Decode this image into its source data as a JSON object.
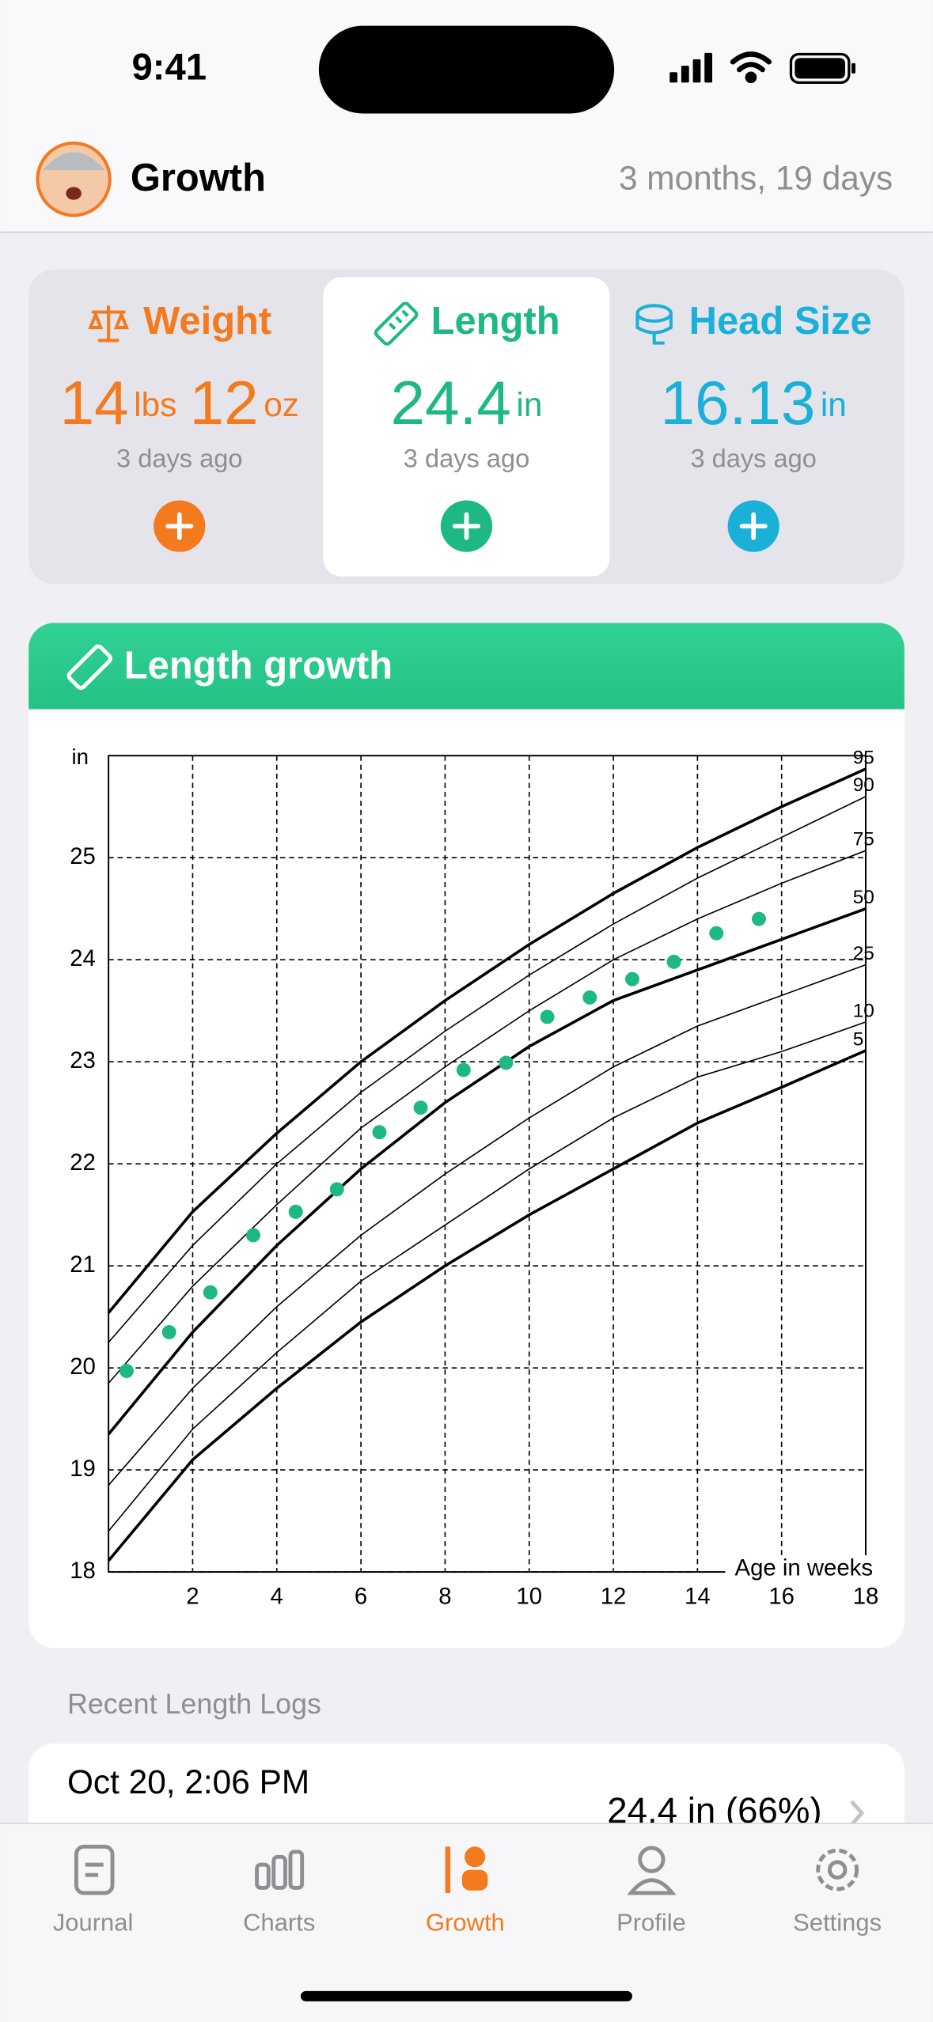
{
  "status_bar": {
    "time": "9:41"
  },
  "header": {
    "title": "Growth",
    "age": "3 months, 19 days"
  },
  "metrics": [
    {
      "label": "Weight",
      "value": "14",
      "unit": "lbs",
      "value2": "12",
      "unit2": "oz",
      "updated": "3 days ago",
      "color": "#f47a20"
    },
    {
      "label": "Length",
      "value": "24.4",
      "unit": "in",
      "updated": "3 days ago",
      "color": "#1db883",
      "selected": true
    },
    {
      "label": "Head Size",
      "value": "16.13",
      "unit": "in",
      "updated": "3 days ago",
      "color": "#1ab0d8"
    }
  ],
  "chart_data": {
    "type": "line",
    "title": "Length growth",
    "y_label": "in",
    "x_label": "Age in weeks",
    "xlim": [
      0,
      18
    ],
    "ylim": [
      18,
      26
    ],
    "xticks": [
      2,
      4,
      6,
      8,
      10,
      12,
      14,
      16,
      18
    ],
    "yticks": [
      18,
      19,
      20,
      21,
      22,
      23,
      24,
      25
    ],
    "grid": true,
    "x": [
      0,
      2,
      4,
      6,
      8,
      10,
      12,
      14,
      16,
      18
    ],
    "percentiles": [
      {
        "label": "95",
        "thick": true,
        "values": [
          20.54,
          21.53,
          22.3,
          23.0,
          23.6,
          24.15,
          24.65,
          25.1,
          25.5,
          25.87
        ]
      },
      {
        "label": "90",
        "thick": false,
        "values": [
          20.25,
          21.2,
          22.0,
          22.7,
          23.3,
          23.85,
          24.35,
          24.8,
          25.2,
          25.6
        ]
      },
      {
        "label": "75",
        "thick": false,
        "values": [
          19.85,
          20.8,
          21.6,
          22.35,
          22.95,
          23.5,
          24.0,
          24.4,
          24.75,
          25.07
        ]
      },
      {
        "label": "50",
        "thick": true,
        "values": [
          19.35,
          20.35,
          21.2,
          21.95,
          22.6,
          23.15,
          23.6,
          23.9,
          24.2,
          24.5
        ]
      },
      {
        "label": "25",
        "thick": false,
        "values": [
          18.85,
          19.8,
          20.6,
          21.3,
          21.9,
          22.45,
          22.95,
          23.35,
          23.65,
          23.95
        ]
      },
      {
        "label": "10",
        "thick": false,
        "values": [
          18.4,
          19.4,
          20.15,
          20.85,
          21.4,
          21.95,
          22.45,
          22.85,
          23.1,
          23.39
        ]
      },
      {
        "label": "5",
        "thick": true,
        "values": [
          18.11,
          19.1,
          19.8,
          20.45,
          21.0,
          21.5,
          21.95,
          22.4,
          22.75,
          23.11
        ]
      }
    ],
    "line_color": "#000000",
    "measurements": {
      "color": "#1db883",
      "x": [
        0.43,
        1.44,
        2.42,
        3.44,
        4.45,
        5.43,
        6.44,
        7.42,
        8.44,
        9.45,
        10.43,
        11.44,
        12.45,
        13.44,
        14.45,
        15.46
      ],
      "values": [
        19.97,
        20.35,
        20.74,
        21.3,
        21.53,
        21.75,
        22.31,
        22.55,
        22.92,
        22.99,
        23.44,
        23.63,
        23.81,
        23.98,
        24.26,
        24.4
      ]
    }
  },
  "recent_logs": {
    "title": "Recent Length Logs",
    "entries": [
      {
        "date": "Oct 20, 2:06 PM",
        "value": "24.4 in (66%)"
      }
    ]
  },
  "tab_bar": {
    "active_color": "#f47a20",
    "tabs": [
      {
        "label": "Journal"
      },
      {
        "label": "Charts"
      },
      {
        "label": "Growth",
        "selected": true
      },
      {
        "label": "Profile"
      },
      {
        "label": "Settings"
      }
    ]
  }
}
